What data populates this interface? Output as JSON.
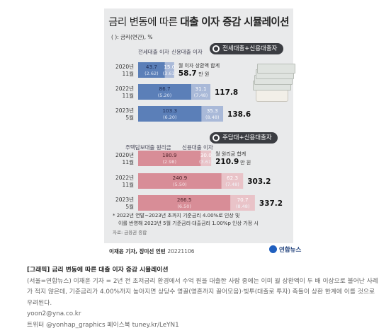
{
  "title": {
    "part1": "금리 변동에 따른",
    "part2": "대출 이자 증감 시뮬레이션"
  },
  "unit_note": "( ): 금리(연간), %",
  "colors": {
    "jeonse": "#5b7fb8",
    "credit": "#a9b9d8",
    "mortgage": "#d88d97",
    "credit2": "#e9c3c8",
    "bg": "#e9eaeb",
    "badge": "#3b3d42"
  },
  "section1": {
    "badge": "전세대출+신용대출자",
    "legend_a": "전세대출 이자",
    "legend_b": "신용대출 이자",
    "total_label": "월 이자 상환액 합계",
    "total_unit": "만 원"
  },
  "section2": {
    "badge": "주담대+신용대출자",
    "legend_a": "주택담보대출 원리금",
    "legend_b": "신용대출 이자",
    "total_label": "월 원리금 합계",
    "total_unit": "만 원"
  },
  "chart_data": [
    {
      "type": "bar",
      "stacked": true,
      "orientation": "horizontal",
      "categories": [
        "2020년 11월",
        "2022년 11월",
        "2023년 5월"
      ],
      "series": [
        {
          "name": "전세대출 이자",
          "values": [
            43.7,
            86.7,
            103.3
          ],
          "rates": [
            "(2.62)",
            "(5.20)",
            "(6.20)"
          ]
        },
        {
          "name": "신용대출 이자",
          "values": [
            15.0,
            31.1,
            35.3
          ],
          "rates": [
            "(3.61)",
            "(7.48)",
            "(8.48)"
          ]
        }
      ],
      "totals": [
        "58.7",
        "117.8",
        "138.6"
      ]
    },
    {
      "type": "bar",
      "stacked": true,
      "orientation": "horizontal",
      "categories": [
        "2020년 11월",
        "2022년 11월",
        "2023년 5월"
      ],
      "series": [
        {
          "name": "주택담보대출 원리금",
          "values": [
            180.9,
            240.9,
            266.5
          ],
          "rates": [
            "(2.98)",
            "(5.50)",
            "(6.50)"
          ]
        },
        {
          "name": "신용대출 이자",
          "values": [
            30.0,
            62.3,
            70.7
          ],
          "rates": [
            "(3.61)",
            "(7.48)",
            "(8.48)"
          ]
        }
      ],
      "totals": [
        "210.9",
        "303.2",
        "337.2"
      ]
    }
  ],
  "footnote1": "* 2022년 연말~2023년 초까지 기준금리 4.00%로 인상 및",
  "footnote2": "이를 반영해 2023년 5월 기준금리·대출금리 1.00%p 인상 가정 시",
  "source": "자료: 금융권 종합",
  "byline": "이재윤 기자, 장미선 인턴",
  "byline_date": "20221106",
  "brand": "연합뉴스",
  "caption": {
    "headline": "[그래픽] 금리 변동에 따른 대출 이자 증감 시뮬레이션",
    "body": "(서울=연합뉴스) 이재윤 기자 = 2년 전 초저금리 환경에서 수억 원을 대출한 사람 중에는 이미 월 상환액이 두 배 이상으로 불어난 사례가 적지 않은데, 기준금리가 4.00%까지 높아지면 상당수 영끌(영혼까지 끌어모음)·빚투(대출로 투자) 족들이 상환 한계에 이를 것으로 우려된다.",
    "email": "yoon2@yna.co.kr",
    "social": "트위터 @yonhap_graphics 페이스북 tuney.kr/LeYN1"
  }
}
